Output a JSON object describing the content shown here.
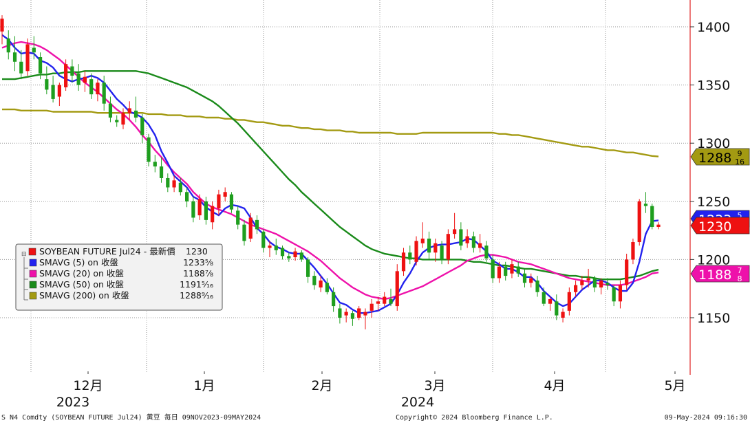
{
  "chart_data": {
    "type": "candlestick",
    "grid": true,
    "legend_position": "top-left",
    "y_axis_side": "right",
    "y_ticks": [
      1150,
      1200,
      1250,
      1300,
      1350,
      1400
    ],
    "ylim": [
      1110,
      1420
    ],
    "x_month_labels": [
      "12月",
      "1月",
      "2月",
      "3月",
      "4月",
      "5月"
    ],
    "x_year_labels": [
      "2023",
      "2024"
    ],
    "footer_left": "S N4 Comdty (SOYBEAN FUTURE    Jul24) 黄豆  毎日 09NOV2023-09MAY2024",
    "footer_center": "Copyright© 2024 Bloomberg Finance L.P.",
    "footer_right": "09-May-2024 09:16:30",
    "legend": [
      {
        "name": "SOYBEAN FUTURE Jul24 - 最新價",
        "value": "1230",
        "color": "#ee1111"
      },
      {
        "name": "SMAVG (5)  on 收盤",
        "value": "1233⅝",
        "color": "#2222ee"
      },
      {
        "name": "SMAVG (20)  on 收盤",
        "value": "1188⅞",
        "color": "#ee11aa"
      },
      {
        "name": "SMAVG (50)  on 收盤",
        "value": "1191⁵⁄₁₆",
        "color": "#1a8a1a"
      },
      {
        "name": "SMAVG (200)  on 收盤",
        "value": "1288⁹⁄₁₆",
        "color": "#a39a12"
      }
    ],
    "price_tags": [
      {
        "value": 1288.5625,
        "main": "1288",
        "frac": "9/16",
        "color": "#a39a12",
        "text_color": "#000000"
      },
      {
        "value": 1233.625,
        "main": "1233",
        "frac": "5/8",
        "color": "#2222ee",
        "text_color": "#ffffff"
      },
      {
        "value": 1230,
        "main": "1230",
        "frac": "",
        "color": "#ee1111",
        "text_color": "#ffffff"
      },
      {
        "value": 1188.875,
        "main": "1188",
        "frac": "7/8",
        "color": "#ee11aa",
        "text_color": "#ffffff"
      }
    ],
    "candles": [
      {
        "o": 1396,
        "h": 1410,
        "l": 1385,
        "c": 1407
      },
      {
        "o": 1390,
        "h": 1397,
        "l": 1372,
        "c": 1378
      },
      {
        "o": 1378,
        "h": 1392,
        "l": 1362,
        "c": 1370
      },
      {
        "o": 1370,
        "h": 1380,
        "l": 1355,
        "c": 1360
      },
      {
        "o": 1362,
        "h": 1390,
        "l": 1358,
        "c": 1385
      },
      {
        "o": 1382,
        "h": 1392,
        "l": 1372,
        "c": 1378
      },
      {
        "o": 1374,
        "h": 1378,
        "l": 1355,
        "c": 1360
      },
      {
        "o": 1355,
        "h": 1366,
        "l": 1342,
        "c": 1346
      },
      {
        "o": 1350,
        "h": 1358,
        "l": 1335,
        "c": 1338
      },
      {
        "o": 1340,
        "h": 1352,
        "l": 1332,
        "c": 1350
      },
      {
        "o": 1348,
        "h": 1372,
        "l": 1345,
        "c": 1368
      },
      {
        "o": 1366,
        "h": 1372,
        "l": 1352,
        "c": 1358
      },
      {
        "o": 1360,
        "h": 1368,
        "l": 1345,
        "c": 1350
      },
      {
        "o": 1352,
        "h": 1362,
        "l": 1344,
        "c": 1357
      },
      {
        "o": 1355,
        "h": 1360,
        "l": 1338,
        "c": 1342
      },
      {
        "o": 1342,
        "h": 1355,
        "l": 1336,
        "c": 1352
      },
      {
        "o": 1352,
        "h": 1358,
        "l": 1328,
        "c": 1334
      },
      {
        "o": 1334,
        "h": 1340,
        "l": 1318,
        "c": 1322
      },
      {
        "o": 1320,
        "h": 1324,
        "l": 1314,
        "c": 1318
      },
      {
        "o": 1316,
        "h": 1330,
        "l": 1312,
        "c": 1326
      },
      {
        "o": 1326,
        "h": 1336,
        "l": 1320,
        "c": 1330
      },
      {
        "o": 1328,
        "h": 1340,
        "l": 1318,
        "c": 1322
      },
      {
        "o": 1322,
        "h": 1325,
        "l": 1300,
        "c": 1307
      },
      {
        "o": 1305,
        "h": 1308,
        "l": 1280,
        "c": 1284
      },
      {
        "o": 1284,
        "h": 1290,
        "l": 1275,
        "c": 1280
      },
      {
        "o": 1280,
        "h": 1288,
        "l": 1266,
        "c": 1270
      },
      {
        "o": 1270,
        "h": 1274,
        "l": 1258,
        "c": 1262
      },
      {
        "o": 1262,
        "h": 1272,
        "l": 1258,
        "c": 1268
      },
      {
        "o": 1266,
        "h": 1270,
        "l": 1255,
        "c": 1258
      },
      {
        "o": 1258,
        "h": 1262,
        "l": 1245,
        "c": 1250
      },
      {
        "o": 1250,
        "h": 1254,
        "l": 1232,
        "c": 1236
      },
      {
        "o": 1238,
        "h": 1256,
        "l": 1234,
        "c": 1252
      },
      {
        "o": 1250,
        "h": 1254,
        "l": 1230,
        "c": 1234
      },
      {
        "o": 1232,
        "h": 1250,
        "l": 1226,
        "c": 1246
      },
      {
        "o": 1244,
        "h": 1260,
        "l": 1238,
        "c": 1256
      },
      {
        "o": 1254,
        "h": 1262,
        "l": 1250,
        "c": 1258
      },
      {
        "o": 1256,
        "h": 1258,
        "l": 1240,
        "c": 1243
      },
      {
        "o": 1242,
        "h": 1246,
        "l": 1226,
        "c": 1230
      },
      {
        "o": 1230,
        "h": 1234,
        "l": 1212,
        "c": 1216
      },
      {
        "o": 1218,
        "h": 1240,
        "l": 1215,
        "c": 1236
      },
      {
        "o": 1234,
        "h": 1238,
        "l": 1222,
        "c": 1226
      },
      {
        "o": 1224,
        "h": 1226,
        "l": 1206,
        "c": 1210
      },
      {
        "o": 1210,
        "h": 1216,
        "l": 1202,
        "c": 1212
      },
      {
        "o": 1212,
        "h": 1218,
        "l": 1204,
        "c": 1208
      },
      {
        "o": 1210,
        "h": 1212,
        "l": 1200,
        "c": 1203
      },
      {
        "o": 1203,
        "h": 1206,
        "l": 1198,
        "c": 1201
      },
      {
        "o": 1202,
        "h": 1210,
        "l": 1199,
        "c": 1207
      },
      {
        "o": 1206,
        "h": 1208,
        "l": 1198,
        "c": 1200
      },
      {
        "o": 1200,
        "h": 1202,
        "l": 1180,
        "c": 1185
      },
      {
        "o": 1186,
        "h": 1190,
        "l": 1174,
        "c": 1178
      },
      {
        "o": 1176,
        "h": 1186,
        "l": 1172,
        "c": 1182
      },
      {
        "o": 1180,
        "h": 1184,
        "l": 1170,
        "c": 1172
      },
      {
        "o": 1172,
        "h": 1176,
        "l": 1155,
        "c": 1160
      },
      {
        "o": 1158,
        "h": 1162,
        "l": 1145,
        "c": 1150
      },
      {
        "o": 1152,
        "h": 1158,
        "l": 1146,
        "c": 1155
      },
      {
        "o": 1154,
        "h": 1156,
        "l": 1143,
        "c": 1149
      },
      {
        "o": 1150,
        "h": 1160,
        "l": 1148,
        "c": 1158
      },
      {
        "o": 1152,
        "h": 1158,
        "l": 1140,
        "c": 1155
      },
      {
        "o": 1156,
        "h": 1166,
        "l": 1150,
        "c": 1162
      },
      {
        "o": 1162,
        "h": 1168,
        "l": 1156,
        "c": 1164
      },
      {
        "o": 1162,
        "h": 1172,
        "l": 1160,
        "c": 1168
      },
      {
        "o": 1166,
        "h": 1175,
        "l": 1160,
        "c": 1162
      },
      {
        "o": 1160,
        "h": 1196,
        "l": 1156,
        "c": 1190
      },
      {
        "o": 1190,
        "h": 1210,
        "l": 1186,
        "c": 1206
      },
      {
        "o": 1206,
        "h": 1212,
        "l": 1196,
        "c": 1200
      },
      {
        "o": 1198,
        "h": 1220,
        "l": 1195,
        "c": 1216
      },
      {
        "o": 1214,
        "h": 1232,
        "l": 1210,
        "c": 1218
      },
      {
        "o": 1218,
        "h": 1224,
        "l": 1200,
        "c": 1206
      },
      {
        "o": 1206,
        "h": 1218,
        "l": 1198,
        "c": 1214
      },
      {
        "o": 1212,
        "h": 1216,
        "l": 1196,
        "c": 1200
      },
      {
        "o": 1200,
        "h": 1226,
        "l": 1196,
        "c": 1222
      },
      {
        "o": 1222,
        "h": 1240,
        "l": 1218,
        "c": 1226
      },
      {
        "o": 1226,
        "h": 1232,
        "l": 1208,
        "c": 1212
      },
      {
        "o": 1214,
        "h": 1226,
        "l": 1210,
        "c": 1220
      },
      {
        "o": 1220,
        "h": 1224,
        "l": 1206,
        "c": 1210
      },
      {
        "o": 1210,
        "h": 1222,
        "l": 1206,
        "c": 1214
      },
      {
        "o": 1212,
        "h": 1216,
        "l": 1198,
        "c": 1201
      },
      {
        "o": 1200,
        "h": 1204,
        "l": 1180,
        "c": 1184
      },
      {
        "o": 1184,
        "h": 1198,
        "l": 1180,
        "c": 1194
      },
      {
        "o": 1194,
        "h": 1198,
        "l": 1182,
        "c": 1186
      },
      {
        "o": 1188,
        "h": 1200,
        "l": 1184,
        "c": 1196
      },
      {
        "o": 1194,
        "h": 1198,
        "l": 1185,
        "c": 1188
      },
      {
        "o": 1188,
        "h": 1192,
        "l": 1176,
        "c": 1180
      },
      {
        "o": 1180,
        "h": 1188,
        "l": 1176,
        "c": 1184
      },
      {
        "o": 1182,
        "h": 1186,
        "l": 1168,
        "c": 1172
      },
      {
        "o": 1172,
        "h": 1176,
        "l": 1160,
        "c": 1162
      },
      {
        "o": 1162,
        "h": 1168,
        "l": 1156,
        "c": 1166
      },
      {
        "o": 1164,
        "h": 1170,
        "l": 1148,
        "c": 1152
      },
      {
        "o": 1150,
        "h": 1158,
        "l": 1146,
        "c": 1155
      },
      {
        "o": 1156,
        "h": 1176,
        "l": 1152,
        "c": 1172
      },
      {
        "o": 1172,
        "h": 1182,
        "l": 1168,
        "c": 1178
      },
      {
        "o": 1178,
        "h": 1186,
        "l": 1174,
        "c": 1182
      },
      {
        "o": 1182,
        "h": 1192,
        "l": 1176,
        "c": 1184
      },
      {
        "o": 1184,
        "h": 1186,
        "l": 1172,
        "c": 1176
      },
      {
        "o": 1176,
        "h": 1184,
        "l": 1170,
        "c": 1182
      },
      {
        "o": 1180,
        "h": 1184,
        "l": 1174,
        "c": 1178
      },
      {
        "o": 1176,
        "h": 1178,
        "l": 1160,
        "c": 1164
      },
      {
        "o": 1164,
        "h": 1182,
        "l": 1158,
        "c": 1178
      },
      {
        "o": 1178,
        "h": 1205,
        "l": 1174,
        "c": 1200
      },
      {
        "o": 1200,
        "h": 1218,
        "l": 1196,
        "c": 1215
      },
      {
        "o": 1215,
        "h": 1252,
        "l": 1212,
        "c": 1250
      },
      {
        "o": 1248,
        "h": 1258,
        "l": 1240,
        "c": 1246
      },
      {
        "o": 1246,
        "h": 1248,
        "l": 1226,
        "c": 1228
      },
      {
        "o": 1228,
        "h": 1232,
        "l": 1226,
        "c": 1230
      }
    ],
    "series": [
      {
        "name": "SMAVG (5)",
        "color": "#2222ee",
        "width": 2.4,
        "start_index": 0,
        "values": [
          1393,
          1389,
          1382,
          1377,
          1378,
          1377,
          1371,
          1369,
          1365,
          1358,
          1355,
          1353,
          1355,
          1356,
          1358,
          1356,
          1352,
          1345,
          1338,
          1333,
          1327,
          1325,
          1322,
          1316,
          1307,
          1293,
          1283,
          1272,
          1267,
          1262,
          1254,
          1251,
          1245,
          1241,
          1238,
          1244,
          1247,
          1246,
          1244,
          1236,
          1227,
          1222,
          1215,
          1211,
          1209,
          1206,
          1205,
          1205,
          1199,
          1193,
          1186,
          1179,
          1171,
          1163,
          1161,
          1157,
          1154,
          1154,
          1155,
          1156,
          1159,
          1162,
          1170,
          1180,
          1188,
          1198,
          1206,
          1210,
          1212,
          1213,
          1213,
          1214,
          1215,
          1218,
          1217,
          1212,
          1207,
          1199,
          1196,
          1192,
          1192,
          1189,
          1185,
          1185,
          1180,
          1173,
          1168,
          1163,
          1160,
          1162,
          1168,
          1174,
          1178,
          1182,
          1182,
          1180,
          1176,
          1173,
          1173,
          1180,
          1198,
          1222,
          1233,
          1233.625
        ]
      },
      {
        "name": "SMAVG (20)",
        "color": "#ee11aa",
        "width": 2.4,
        "start_index": 0,
        "values": [
          1382,
          1384,
          1386,
          1387,
          1386,
          1385,
          1383,
          1380,
          1376,
          1372,
          1367,
          1362,
          1357,
          1352,
          1348,
          1344,
          1339,
          1334,
          1329,
          1325,
          1320,
          1314,
          1307,
          1301,
          1294,
          1288,
          1281,
          1275,
          1270,
          1265,
          1258,
          1253,
          1248,
          1245,
          1243,
          1241,
          1239,
          1236,
          1233,
          1230,
          1228,
          1226,
          1224,
          1222,
          1219,
          1216,
          1213,
          1210,
          1207,
          1203,
          1199,
          1194,
          1189,
          1184,
          1180,
          1176,
          1173,
          1170,
          1168,
          1167,
          1166,
          1167,
          1169,
          1171,
          1173,
          1175,
          1177,
          1180,
          1183,
          1186,
          1189,
          1192,
          1195,
          1199,
          1201,
          1203,
          1204,
          1204,
          1203,
          1202,
          1200,
          1198,
          1197,
          1196,
          1194,
          1192,
          1190,
          1188,
          1186,
          1184,
          1183,
          1182,
          1181,
          1180,
          1179,
          1178,
          1178,
          1178,
          1179,
          1181,
          1183,
          1185,
          1188,
          1188.875
        ]
      },
      {
        "name": "SMAVG (50)",
        "color": "#1a8a1a",
        "width": 2.4,
        "start_index": 0,
        "values": [
          1355,
          1355,
          1355,
          1356,
          1357,
          1358,
          1359,
          1359,
          1360,
          1360,
          1361,
          1361,
          1361,
          1362,
          1362,
          1362,
          1362,
          1362,
          1362,
          1362,
          1362,
          1362,
          1361,
          1360,
          1358,
          1356,
          1354,
          1352,
          1350,
          1348,
          1345,
          1342,
          1339,
          1336,
          1332,
          1327,
          1322,
          1317,
          1311,
          1305,
          1299,
          1293,
          1287,
          1281,
          1275,
          1269,
          1264,
          1258,
          1253,
          1248,
          1243,
          1238,
          1233,
          1228,
          1224,
          1220,
          1216,
          1212,
          1209,
          1207,
          1205,
          1204,
          1203,
          1202,
          1201,
          1201,
          1200,
          1200,
          1200,
          1200,
          1200,
          1200,
          1200,
          1199,
          1198,
          1198,
          1197,
          1196,
          1195,
          1195,
          1194,
          1193,
          1192,
          1192,
          1191,
          1190,
          1189,
          1188,
          1187,
          1186,
          1186,
          1185,
          1185,
          1184,
          1183,
          1183,
          1183,
          1183,
          1184,
          1185,
          1186,
          1188,
          1190,
          1191.3125
        ]
      },
      {
        "name": "SMAVG (200)",
        "color": "#a39a12",
        "width": 2.4,
        "start_index": 0,
        "values": [
          1329,
          1329,
          1329,
          1328,
          1328,
          1328,
          1328,
          1328,
          1327,
          1327,
          1327,
          1327,
          1327,
          1327,
          1327,
          1326,
          1326,
          1326,
          1326,
          1326,
          1326,
          1326,
          1326,
          1325,
          1325,
          1325,
          1324,
          1324,
          1324,
          1323,
          1323,
          1323,
          1322,
          1322,
          1322,
          1321,
          1321,
          1320,
          1320,
          1319,
          1318,
          1318,
          1317,
          1316,
          1315,
          1315,
          1314,
          1313,
          1313,
          1312,
          1312,
          1311,
          1311,
          1311,
          1310,
          1310,
          1309,
          1309,
          1309,
          1309,
          1309,
          1309,
          1308,
          1308,
          1308,
          1308,
          1309,
          1309,
          1309,
          1309,
          1309,
          1309,
          1309,
          1309,
          1309,
          1309,
          1309,
          1309,
          1308,
          1308,
          1307,
          1307,
          1306,
          1305,
          1304,
          1303,
          1302,
          1301,
          1300,
          1299,
          1298,
          1297,
          1297,
          1296,
          1295,
          1294,
          1294,
          1293,
          1292,
          1292,
          1291,
          1290,
          1289,
          1288.5625
        ]
      }
    ]
  }
}
